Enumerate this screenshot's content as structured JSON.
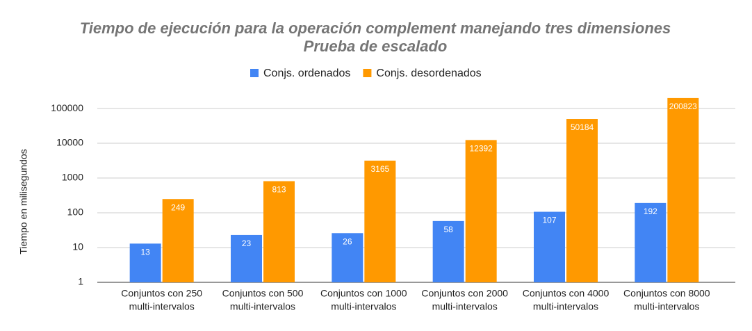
{
  "chart_data": {
    "type": "bar",
    "title": "Tiempo de ejecución para la operación complement manejando tres dimensiones",
    "subtitle": "Prueba de escalado",
    "y_label": "Tiempo en milisegundos",
    "categories": [
      [
        "Conjuntos con 250",
        "multi-intervalos"
      ],
      [
        "Conjuntos con 500",
        "multi-intervalos"
      ],
      [
        "Conjuntos con 1000",
        "multi-intervalos"
      ],
      [
        "Conjuntos con 2000",
        "multi-intervalos"
      ],
      [
        "Conjuntos con 4000",
        "multi-intervalos"
      ],
      [
        "Conjuntos con 8000",
        "multi-intervalos"
      ]
    ],
    "series": [
      {
        "name": "Conjs. ordenados",
        "color": "#4285f4",
        "values": [
          13,
          23,
          26,
          58,
          107,
          192
        ]
      },
      {
        "name": "Conjs. desordenados",
        "color": "#ff9900",
        "values": [
          249,
          813,
          3165,
          12392,
          50184,
          200823
        ]
      }
    ],
    "ylim": [
      1,
      200000
    ],
    "yticks": [
      1,
      10,
      100,
      1000,
      10000,
      100000
    ],
    "log_scale": true,
    "grid": true,
    "legend": "top",
    "data_labels": true
  }
}
